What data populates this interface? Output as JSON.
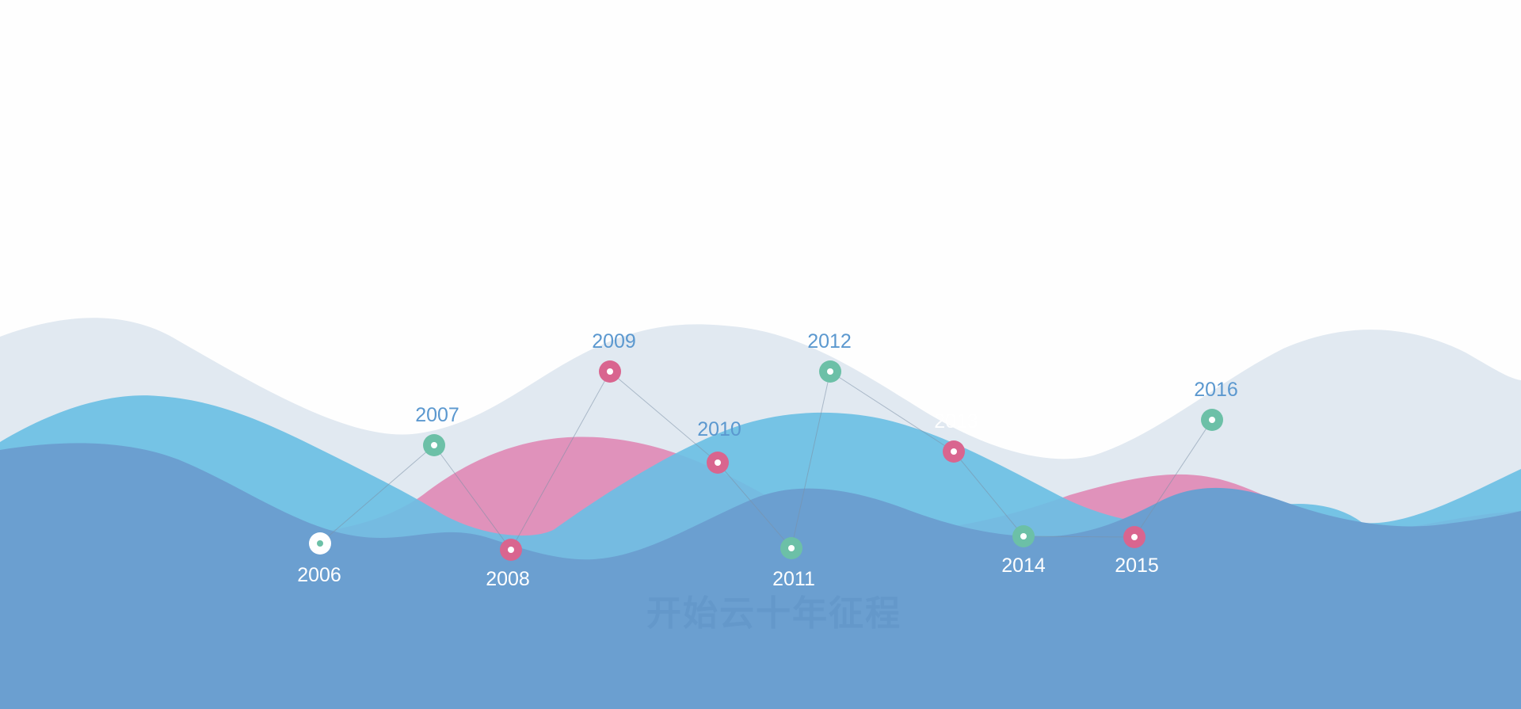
{
  "subtitle": "开始云十年征程",
  "colors": {
    "background": "#fefefe",
    "wave_back": "#e1e9f1",
    "wave_sky": "#6bbfe4",
    "wave_pink": "#e092bb",
    "wave_front": "#6b9fd0",
    "connector": "#7c8fa5",
    "label_blue": "#5b98cf",
    "label_white": "#ffffff",
    "subtitle": "#6195c8"
  },
  "milestones": [
    {
      "year": "2006",
      "color": "#ffffff",
      "dot": "#6cc0a7",
      "label_color": "#ffffff"
    },
    {
      "year": "2007",
      "color": "#6cc0a7",
      "dot": "#ffffff",
      "label_color": "#5b98cf"
    },
    {
      "year": "2008",
      "color": "#d9658f",
      "dot": "#ffffff",
      "label_color": "#ffffff"
    },
    {
      "year": "2009",
      "color": "#d9658f",
      "dot": "#ffffff",
      "label_color": "#5b98cf"
    },
    {
      "year": "2010",
      "color": "#d9658f",
      "dot": "#ffffff",
      "label_color": "#5b98cf"
    },
    {
      "year": "2011",
      "color": "#6cc0a7",
      "dot": "#ffffff",
      "label_color": "#ffffff"
    },
    {
      "year": "2012",
      "color": "#6cc0a7",
      "dot": "#ffffff",
      "label_color": "#5b98cf"
    },
    {
      "year": "2013",
      "color": "#d9658f",
      "dot": "#ffffff",
      "label_color": "#ffffff"
    },
    {
      "year": "2014",
      "color": "#6cc0a7",
      "dot": "#ffffff",
      "label_color": "#ffffff"
    },
    {
      "year": "2015",
      "color": "#d9658f",
      "dot": "#ffffff",
      "label_color": "#ffffff"
    },
    {
      "year": "2016",
      "color": "#6cc0a7",
      "dot": "#ffffff",
      "label_color": "#5b98cf"
    }
  ]
}
